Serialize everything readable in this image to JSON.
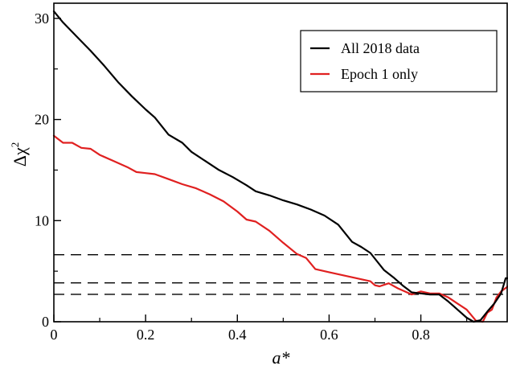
{
  "chart_data": {
    "type": "line",
    "xlabel": "a*",
    "ylabel_main": "Δχ",
    "ylabel_sup": "2",
    "xlim": [
      0,
      0.99
    ],
    "ylim": [
      0,
      31.5
    ],
    "x_ticks": [
      0,
      0.2,
      0.4,
      0.6,
      0.8
    ],
    "x_tick_labels": [
      "0",
      "0.2",
      "0.4",
      "0.6",
      "0.8"
    ],
    "y_ticks": [
      0,
      10,
      20,
      30
    ],
    "y_tick_labels": [
      "0",
      "10",
      "20",
      "30"
    ],
    "grid": false,
    "legend_position": "top-right",
    "reference_lines": [
      6.63,
      3.84,
      2.71
    ],
    "series": [
      {
        "name": "All 2018 data",
        "color": "#000000",
        "points": [
          [
            0.0,
            30.7
          ],
          [
            0.02,
            29.6
          ],
          [
            0.05,
            28.2
          ],
          [
            0.08,
            26.8
          ],
          [
            0.11,
            25.3
          ],
          [
            0.14,
            23.7
          ],
          [
            0.17,
            22.3
          ],
          [
            0.2,
            21.0
          ],
          [
            0.22,
            20.2
          ],
          [
            0.25,
            18.5
          ],
          [
            0.28,
            17.7
          ],
          [
            0.3,
            16.8
          ],
          [
            0.33,
            15.9
          ],
          [
            0.36,
            15.0
          ],
          [
            0.39,
            14.3
          ],
          [
            0.42,
            13.5
          ],
          [
            0.44,
            12.9
          ],
          [
            0.47,
            12.5
          ],
          [
            0.5,
            12.0
          ],
          [
            0.53,
            11.6
          ],
          [
            0.56,
            11.1
          ],
          [
            0.59,
            10.5
          ],
          [
            0.62,
            9.6
          ],
          [
            0.65,
            7.9
          ],
          [
            0.67,
            7.4
          ],
          [
            0.69,
            6.8
          ],
          [
            0.72,
            5.1
          ],
          [
            0.74,
            4.4
          ],
          [
            0.76,
            3.6
          ],
          [
            0.78,
            2.9
          ],
          [
            0.8,
            2.8
          ],
          [
            0.82,
            2.7
          ],
          [
            0.84,
            2.7
          ],
          [
            0.86,
            2.0
          ],
          [
            0.88,
            1.2
          ],
          [
            0.9,
            0.4
          ],
          [
            0.915,
            0.0
          ],
          [
            0.93,
            0.15
          ],
          [
            0.945,
            1.0
          ],
          [
            0.96,
            1.8
          ],
          [
            0.975,
            2.8
          ],
          [
            0.985,
            4.3
          ],
          [
            0.99,
            4.3
          ]
        ]
      },
      {
        "name": "Epoch 1 only",
        "color": "#e02020",
        "points": [
          [
            0.0,
            18.4
          ],
          [
            0.02,
            17.7
          ],
          [
            0.04,
            17.7
          ],
          [
            0.06,
            17.2
          ],
          [
            0.08,
            17.1
          ],
          [
            0.1,
            16.5
          ],
          [
            0.13,
            15.9
          ],
          [
            0.16,
            15.3
          ],
          [
            0.18,
            14.8
          ],
          [
            0.2,
            14.7
          ],
          [
            0.22,
            14.6
          ],
          [
            0.25,
            14.1
          ],
          [
            0.28,
            13.6
          ],
          [
            0.31,
            13.2
          ],
          [
            0.34,
            12.6
          ],
          [
            0.37,
            11.9
          ],
          [
            0.4,
            10.9
          ],
          [
            0.42,
            10.1
          ],
          [
            0.44,
            9.9
          ],
          [
            0.47,
            9.0
          ],
          [
            0.5,
            7.8
          ],
          [
            0.53,
            6.7
          ],
          [
            0.55,
            6.3
          ],
          [
            0.57,
            5.2
          ],
          [
            0.6,
            4.9
          ],
          [
            0.63,
            4.6
          ],
          [
            0.66,
            4.3
          ],
          [
            0.69,
            4.0
          ],
          [
            0.7,
            3.6
          ],
          [
            0.71,
            3.5
          ],
          [
            0.73,
            3.8
          ],
          [
            0.75,
            3.3
          ],
          [
            0.78,
            2.7
          ],
          [
            0.8,
            3.0
          ],
          [
            0.82,
            2.8
          ],
          [
            0.84,
            2.8
          ],
          [
            0.86,
            2.4
          ],
          [
            0.88,
            1.8
          ],
          [
            0.9,
            1.2
          ],
          [
            0.92,
            0.1
          ],
          [
            0.935,
            0.0
          ],
          [
            0.945,
            0.9
          ],
          [
            0.955,
            1.2
          ],
          [
            0.965,
            2.4
          ],
          [
            0.975,
            3.0
          ],
          [
            0.99,
            3.5
          ]
        ]
      }
    ]
  }
}
